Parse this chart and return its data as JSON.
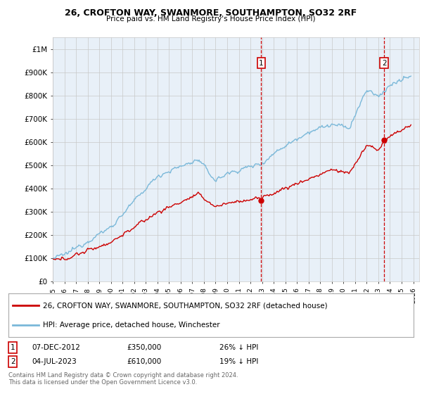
{
  "title": "26, CROFTON WAY, SWANMORE, SOUTHAMPTON, SO32 2RF",
  "subtitle": "Price paid vs. HM Land Registry's House Price Index (HPI)",
  "legend_entry1": "26, CROFTON WAY, SWANMORE, SOUTHAMPTON, SO32 2RF (detached house)",
  "legend_entry2": "HPI: Average price, detached house, Winchester",
  "annotation1_label": "1",
  "annotation1_date": "07-DEC-2012",
  "annotation1_price": "£350,000",
  "annotation1_hpi": "26% ↓ HPI",
  "annotation2_label": "2",
  "annotation2_date": "04-JUL-2023",
  "annotation2_price": "£610,000",
  "annotation2_hpi": "19% ↓ HPI",
  "footnote1": "Contains HM Land Registry data © Crown copyright and database right 2024.",
  "footnote2": "This data is licensed under the Open Government Licence v3.0.",
  "sale1_date_num": 2012.93,
  "sale1_price": 350000,
  "sale2_date_num": 2023.5,
  "sale2_price": 610000,
  "hpi_color": "#7ab8d9",
  "price_color": "#cc0000",
  "vline_color": "#cc0000",
  "background_color": "#ffffff",
  "plot_bg_color": "#e8f0f8",
  "grid_color": "#c8c8c8",
  "ylim_max": 1050000,
  "ylim_min": 0,
  "xlim_min": 1995.0,
  "xlim_max": 2026.5
}
